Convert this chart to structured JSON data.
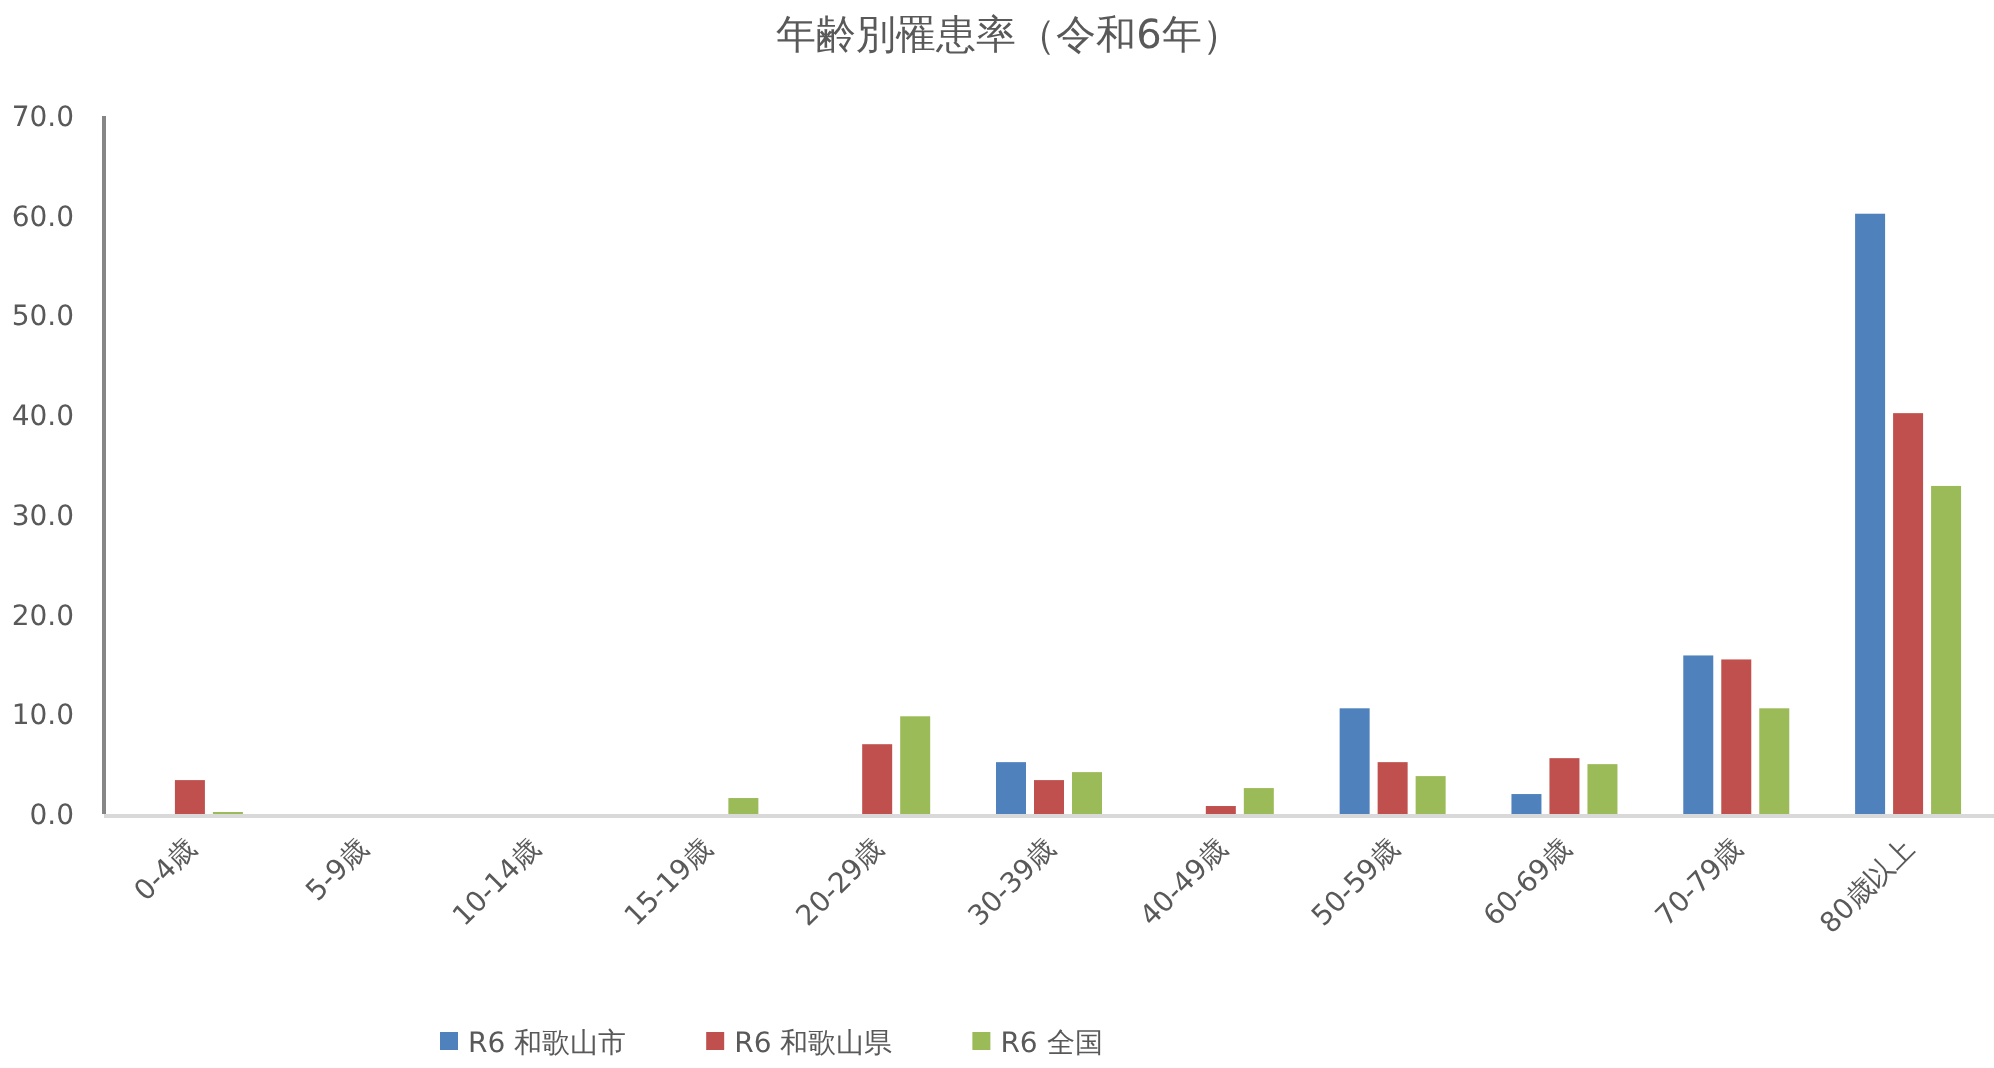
{
  "chart_data": {
    "type": "bar",
    "title": "年齢別罹患率（令和6年）",
    "categories": [
      "0-4歳",
      "5-9歳",
      "10-14歳",
      "15-19歳",
      "20-29歳",
      "30-39歳",
      "40-49歳",
      "50-59歳",
      "60-69歳",
      "70-79歳",
      "80歳以上"
    ],
    "series": [
      {
        "name": "R6 和歌山市",
        "color": "#4f81bd",
        "values": [
          0,
          0,
          0,
          0,
          0,
          5.2,
          0,
          10.6,
          2.0,
          15.9,
          60.2
        ]
      },
      {
        "name": "R6 和歌山県",
        "color": "#c0504d",
        "values": [
          3.4,
          0,
          0,
          0,
          7.0,
          3.4,
          0.8,
          5.2,
          5.6,
          15.5,
          40.2
        ]
      },
      {
        "name": "R6 全国",
        "color": "#9bbb59",
        "values": [
          0.2,
          0,
          0,
          1.6,
          9.8,
          4.2,
          2.6,
          3.8,
          5.0,
          10.6,
          32.9
        ]
      }
    ],
    "ylim": [
      0,
      70
    ],
    "yticks": [
      {
        "value": 0,
        "label": "0.0"
      },
      {
        "value": 10,
        "label": "10.0"
      },
      {
        "value": 20,
        "label": "20.0"
      },
      {
        "value": 30,
        "label": "30.0"
      },
      {
        "value": 40,
        "label": "40.0"
      },
      {
        "value": 50,
        "label": "50.0"
      },
      {
        "value": 60,
        "label": "60.0"
      },
      {
        "value": 70,
        "label": "70.0"
      }
    ],
    "grid": false,
    "legend": "bottom"
  }
}
